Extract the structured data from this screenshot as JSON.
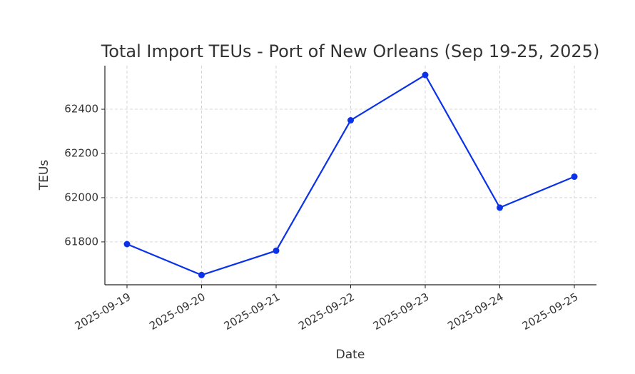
{
  "chart_data": {
    "type": "line",
    "title": "Total Import TEUs - Port of New Orleans (Sep 19-25, 2025)",
    "x_label": "Date",
    "y_label": "TEUs",
    "categories": [
      "2025-09-19",
      "2025-09-20",
      "2025-09-21",
      "2025-09-22",
      "2025-09-23",
      "2025-09-24",
      "2025-09-25"
    ],
    "series": [
      {
        "name": "Total Import TEUs",
        "color": "#0b32e8",
        "values": [
          61790,
          61650,
          61760,
          62350,
          62555,
          61955,
          62095
        ]
      }
    ],
    "ylim": [
      61606,
      62597
    ],
    "yticks": [
      61800,
      62000,
      62200,
      62400
    ],
    "grid": true
  }
}
